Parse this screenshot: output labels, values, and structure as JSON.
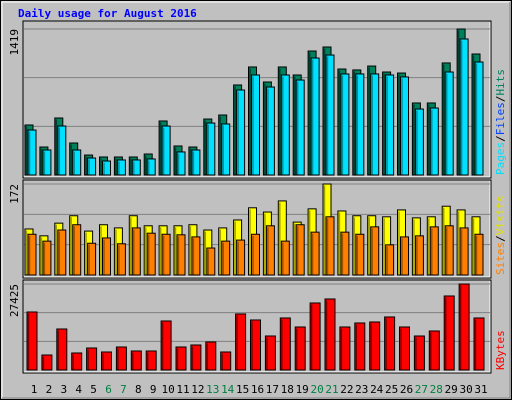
{
  "chart_data": [
    {
      "type": "bar",
      "title": "Daily usage for August 2016",
      "ylim": [
        0,
        1419
      ],
      "yticks": [
        1419
      ],
      "grid": true,
      "series": [
        {
          "name": "Pages",
          "color": "#00e0ff",
          "values": [
            437,
            243,
            476,
            243,
            165,
            136,
            146,
            146,
            156,
            476,
            224,
            243,
            505,
            496,
            826,
            972,
            855,
            972,
            923,
            1137,
            1166,
            982,
            982,
            982,
            972,
            953,
            641,
            651,
            1001,
            1322,
            1098
          ]
        },
        {
          "name": "Files",
          "color": "#0040ff"
        },
        {
          "name": "Hits",
          "color": "#00805c",
          "values": [
            486,
            272,
            554,
            311,
            194,
            175,
            175,
            175,
            204,
            525,
            282,
            272,
            544,
            583,
            875,
            1050,
            904,
            1050,
            972,
            1205,
            1244,
            1030,
            1021,
            1059,
            1001,
            991,
            700,
            700,
            1089,
            1419,
            1176
          ]
        }
      ]
    },
    {
      "type": "bar",
      "ylim": [
        0,
        172
      ],
      "yticks": [
        172
      ],
      "grid": true,
      "series": [
        {
          "name": "Sites",
          "color": "#ff8000",
          "values": [
            77,
            64,
            85,
            95,
            60,
            70,
            59,
            89,
            79,
            77,
            76,
            72,
            51,
            64,
            66,
            77,
            93,
            64,
            95,
            81,
            110,
            81,
            77,
            91,
            57,
            72,
            74,
            91,
            93,
            89,
            77
          ]
        },
        {
          "name": "Visits",
          "color": "#ffff00",
          "values": [
            87,
            74,
            98,
            112,
            83,
            95,
            89,
            112,
            93,
            93,
            93,
            95,
            85,
            89,
            104,
            127,
            119,
            140,
            100,
            125,
            172,
            121,
            112,
            112,
            110,
            123,
            108,
            110,
            130,
            123,
            110
          ]
        }
      ]
    },
    {
      "type": "bar",
      "ylim": [
        0,
        27425
      ],
      "yticks": [
        27425
      ],
      "grid": true,
      "categories": [
        "1",
        "2",
        "3",
        "4",
        "5",
        "6",
        "7",
        "8",
        "9",
        "10",
        "11",
        "12",
        "13",
        "14",
        "15",
        "16",
        "17",
        "18",
        "19",
        "20",
        "21",
        "22",
        "23",
        "24",
        "25",
        "26",
        "27",
        "28",
        "29",
        "30",
        "31"
      ],
      "category_colors": [
        "#000000",
        "#000000",
        "#000000",
        "#000000",
        "#000000",
        "#008040",
        "#008040",
        "#000000",
        "#000000",
        "#000000",
        "#000000",
        "#000000",
        "#008040",
        "#008040",
        "#000000",
        "#000000",
        "#000000",
        "#000000",
        "#000000",
        "#008040",
        "#008040",
        "#000000",
        "#000000",
        "#000000",
        "#000000",
        "#000000",
        "#008040",
        "#008040",
        "#000000",
        "#000000",
        "#000000"
      ],
      "series": [
        {
          "name": "KBytes",
          "color": "#ff0000",
          "values": [
            18502,
            4785,
            13079,
            5423,
            7018,
            5742,
            7337,
            6061,
            6061,
            15631,
            7337,
            7975,
            8932,
            5742,
            17864,
            15950,
            10846,
            16588,
            13717,
            21373,
            22649,
            13717,
            14993,
            15312,
            16907,
            13717,
            10846,
            12441,
            23606,
            27425,
            16588
          ]
        }
      ]
    }
  ]
}
